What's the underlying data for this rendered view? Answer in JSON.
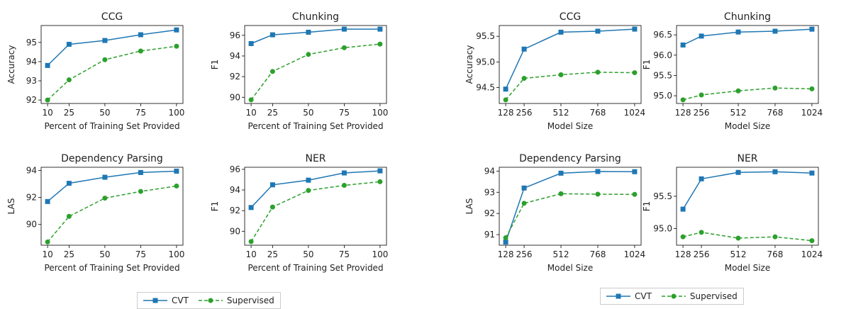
{
  "colors": {
    "cvt": "#1f77b4",
    "supervised": "#2ca02c"
  },
  "legend": {
    "left": {
      "cvt_label": "CVT",
      "supervised_label": "Supervised"
    },
    "right": {
      "cvt_label": "CVT",
      "supervised_label": "Supervised"
    }
  },
  "chart_data": [
    {
      "type": "line",
      "title": "CCG",
      "xlabel": "Percent of Training Set Provided",
      "ylabel": "Accuracy",
      "x": [
        10,
        25,
        50,
        75,
        100
      ],
      "xticks": [
        "10",
        "25",
        "50",
        "75",
        "100"
      ],
      "yticks": [
        92,
        93,
        94,
        95
      ],
      "ylim": [
        91.82,
        95.88
      ],
      "ticklabels_y": [
        "92",
        "93",
        "94",
        "95"
      ],
      "series": [
        {
          "name": "CVT",
          "values": [
            93.8,
            94.9,
            95.1,
            95.4,
            95.65
          ]
        },
        {
          "name": "Supervised",
          "values": [
            92.0,
            93.05,
            94.1,
            94.55,
            94.8
          ]
        }
      ]
    },
    {
      "type": "line",
      "title": "Chunking",
      "xlabel": "Percent of Training Set Provided",
      "ylabel": "F1",
      "x": [
        10,
        25,
        50,
        75,
        100
      ],
      "xticks": [
        "10",
        "25",
        "50",
        "75",
        "100"
      ],
      "yticks": [
        90,
        92,
        94,
        96
      ],
      "ylim": [
        89.4,
        96.95
      ],
      "ticklabels_y": [
        "90",
        "92",
        "94",
        "96"
      ],
      "series": [
        {
          "name": "CVT",
          "values": [
            95.2,
            96.05,
            96.3,
            96.6,
            96.6
          ]
        },
        {
          "name": "Supervised",
          "values": [
            89.75,
            92.5,
            94.15,
            94.8,
            95.15
          ]
        }
      ]
    },
    {
      "type": "line",
      "title": "Dependency Parsing",
      "xlabel": "Percent of Training Set Provided",
      "ylabel": "LAS",
      "x": [
        10,
        25,
        50,
        75,
        100
      ],
      "xticks": [
        "10",
        "25",
        "50",
        "75",
        "100"
      ],
      "yticks": [
        90,
        92,
        94
      ],
      "ylim": [
        88.46,
        94.24
      ],
      "ticklabels_y": [
        "90",
        "92",
        "94"
      ],
      "series": [
        {
          "name": "CVT",
          "values": [
            91.7,
            93.05,
            93.5,
            93.85,
            93.95
          ]
        },
        {
          "name": "Supervised",
          "values": [
            88.7,
            90.6,
            91.95,
            92.45,
            92.85
          ]
        }
      ]
    },
    {
      "type": "line",
      "title": "NER",
      "xlabel": "Percent of Training Set Provided",
      "ylabel": "F1",
      "x": [
        10,
        25,
        50,
        75,
        100
      ],
      "xticks": [
        "10",
        "25",
        "50",
        "75",
        "100"
      ],
      "yticks": [
        90,
        92,
        94,
        96
      ],
      "ylim": [
        88.65,
        96.2
      ],
      "ticklabels_y": [
        "90",
        "92",
        "94",
        "96"
      ],
      "series": [
        {
          "name": "CVT",
          "values": [
            92.3,
            94.5,
            94.95,
            95.65,
            95.85
          ]
        },
        {
          "name": "Supervised",
          "values": [
            89.0,
            92.35,
            93.95,
            94.45,
            94.8
          ]
        }
      ]
    },
    {
      "type": "line",
      "title": "CCG",
      "xlabel": "Model Size",
      "ylabel": "Accuracy",
      "x": [
        128,
        256,
        512,
        768,
        1024
      ],
      "xticks": [
        "128",
        "256",
        "512",
        "768",
        "1024"
      ],
      "yticks": [
        94.5,
        95.0,
        95.5
      ],
      "ylim": [
        94.19,
        95.71
      ],
      "ticklabels_y": [
        "94.5",
        "95.0",
        "95.5"
      ],
      "series": [
        {
          "name": "CVT",
          "values": [
            94.47,
            95.25,
            95.58,
            95.6,
            95.64
          ]
        },
        {
          "name": "Supervised",
          "values": [
            94.26,
            94.68,
            94.75,
            94.8,
            94.79
          ]
        }
      ]
    },
    {
      "type": "line",
      "title": "Chunking",
      "xlabel": "Model Size",
      "ylabel": "F1",
      "x": [
        128,
        256,
        512,
        768,
        1024
      ],
      "xticks": [
        "128",
        "256",
        "512",
        "768",
        "1024"
      ],
      "yticks": [
        95.0,
        95.5,
        96.0,
        96.5
      ],
      "ylim": [
        94.81,
        96.73
      ],
      "ticklabels_y": [
        "95.0",
        "95.5",
        "96.0",
        "96.5"
      ],
      "series": [
        {
          "name": "CVT",
          "values": [
            96.25,
            96.47,
            96.57,
            96.59,
            96.64
          ]
        },
        {
          "name": "Supervised",
          "values": [
            94.9,
            95.02,
            95.12,
            95.19,
            95.17
          ]
        }
      ]
    },
    {
      "type": "line",
      "title": "Dependency Parsing",
      "xlabel": "Model Size",
      "ylabel": "LAS",
      "x": [
        128,
        256,
        512,
        768,
        1024
      ],
      "xticks": [
        "128",
        "256",
        "512",
        "768",
        "1024"
      ],
      "yticks": [
        91,
        92,
        93,
        94
      ],
      "ylim": [
        90.5,
        94.18
      ],
      "ticklabels_y": [
        "91",
        "92",
        "93",
        "94"
      ],
      "series": [
        {
          "name": "CVT",
          "values": [
            90.65,
            93.2,
            93.9,
            93.98,
            93.97
          ]
        },
        {
          "name": "Supervised",
          "values": [
            90.85,
            92.48,
            92.93,
            92.91,
            92.9
          ]
        }
      ]
    },
    {
      "type": "line",
      "title": "NER",
      "xlabel": "Model Size",
      "ylabel": "F1",
      "x": [
        128,
        256,
        512,
        768,
        1024
      ],
      "xticks": [
        "128",
        "256",
        "512",
        "768",
        "1024"
      ],
      "yticks": [
        95.0,
        95.5
      ],
      "ylim": [
        94.74,
        95.95
      ],
      "ticklabels_y": [
        "95.0",
        "95.5"
      ],
      "series": [
        {
          "name": "CVT",
          "values": [
            95.3,
            95.77,
            95.87,
            95.88,
            95.86
          ]
        },
        {
          "name": "Supervised",
          "values": [
            94.87,
            94.94,
            94.85,
            94.87,
            94.81
          ]
        }
      ]
    }
  ]
}
